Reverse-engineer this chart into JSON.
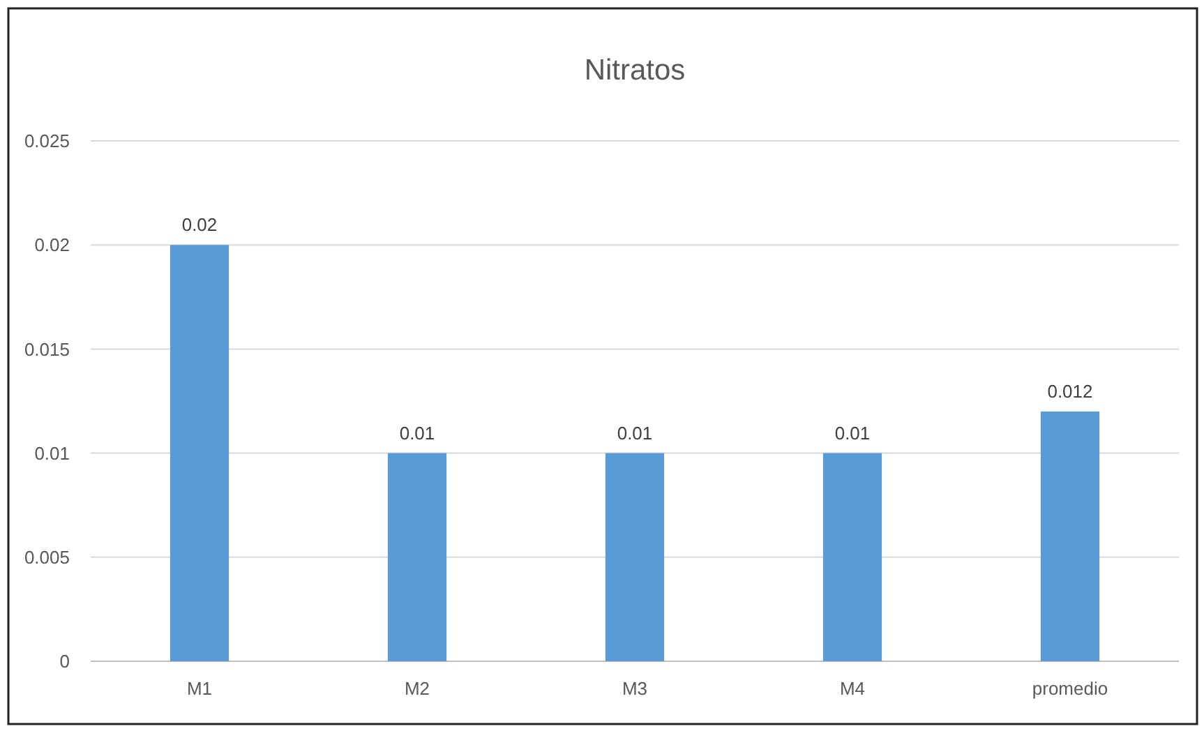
{
  "chart_data": {
    "type": "bar",
    "title": "Nitratos",
    "categories": [
      "M1",
      "M2",
      "M3",
      "M4",
      "promedio"
    ],
    "values": [
      0.02,
      0.01,
      0.01,
      0.01,
      0.012
    ],
    "color": "#5b9bd5",
    "ylim": [
      0,
      0.025
    ],
    "yticks": [
      0,
      0.005,
      0.01,
      0.015,
      0.02,
      0.025
    ],
    "grid": "y",
    "data_labels": true
  }
}
